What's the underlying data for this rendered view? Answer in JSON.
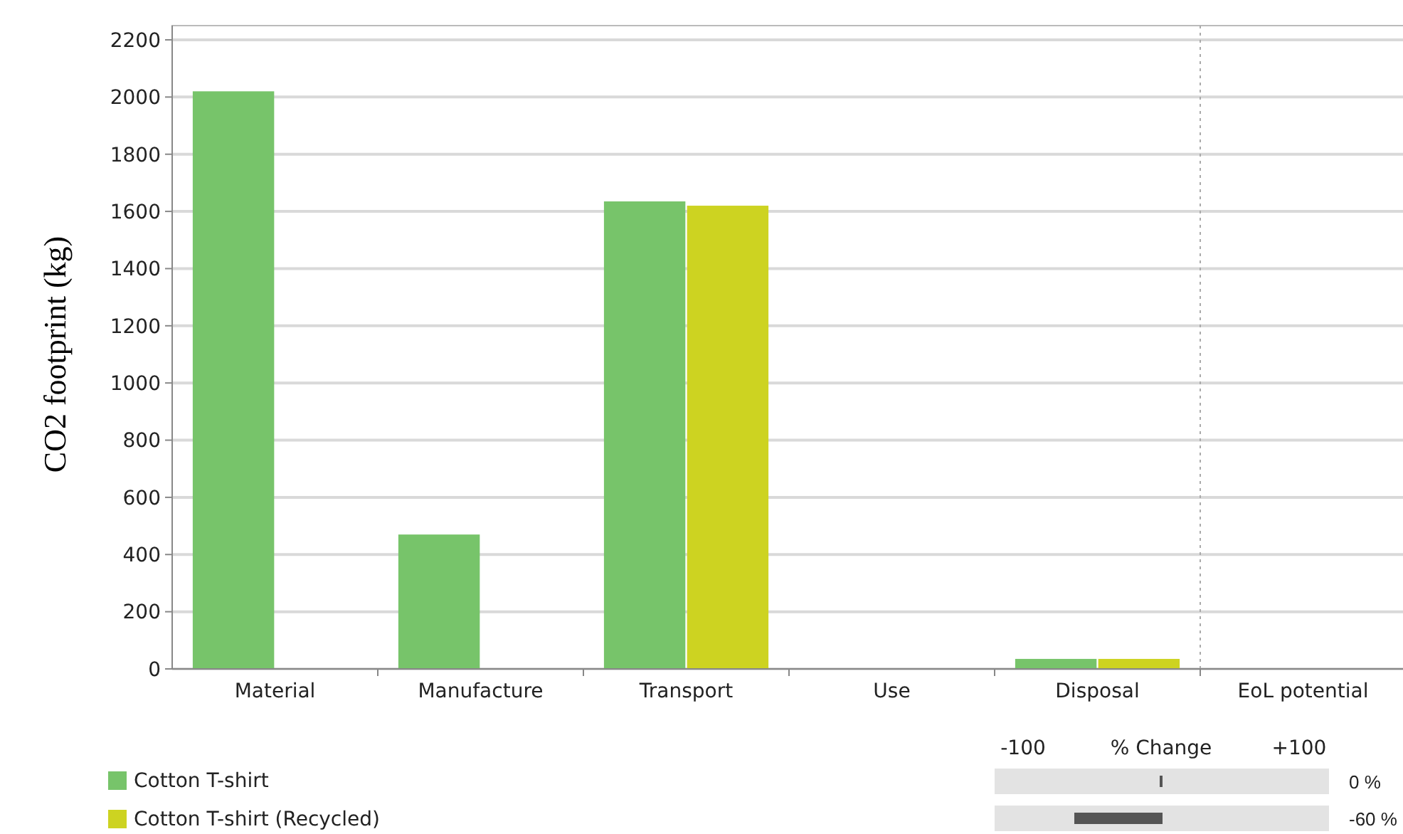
{
  "chart_data": {
    "type": "bar",
    "ylabel": "CO2 footprint (kg)",
    "categories": [
      "Material",
      "Manufacture",
      "Transport",
      "Use",
      "Disposal",
      "EoL potential"
    ],
    "series": [
      {
        "name": "Cotton T-shirt",
        "color": "#77c46a",
        "values": [
          2020,
          470,
          1635,
          0,
          35,
          0
        ]
      },
      {
        "name": "Cotton T-shirt (Recycled)",
        "color": "#cdd321",
        "values": [
          0,
          0,
          1620,
          0,
          35,
          0
        ]
      }
    ],
    "ylim": [
      0,
      2200
    ],
    "yticks": [
      0,
      200,
      400,
      600,
      800,
      1000,
      1200,
      1400,
      1600,
      1800,
      2000,
      2200
    ],
    "grid": "y",
    "legend": "bottom left",
    "ref_lines": [
      {
        "axis": "x",
        "value": "EoL potential",
        "color": "#aaaaaa",
        "line_style": "dotted"
      }
    ],
    "annotations": [
      "-100",
      "% Change",
      "+100",
      "0 %",
      "-60 %"
    ]
  }
}
